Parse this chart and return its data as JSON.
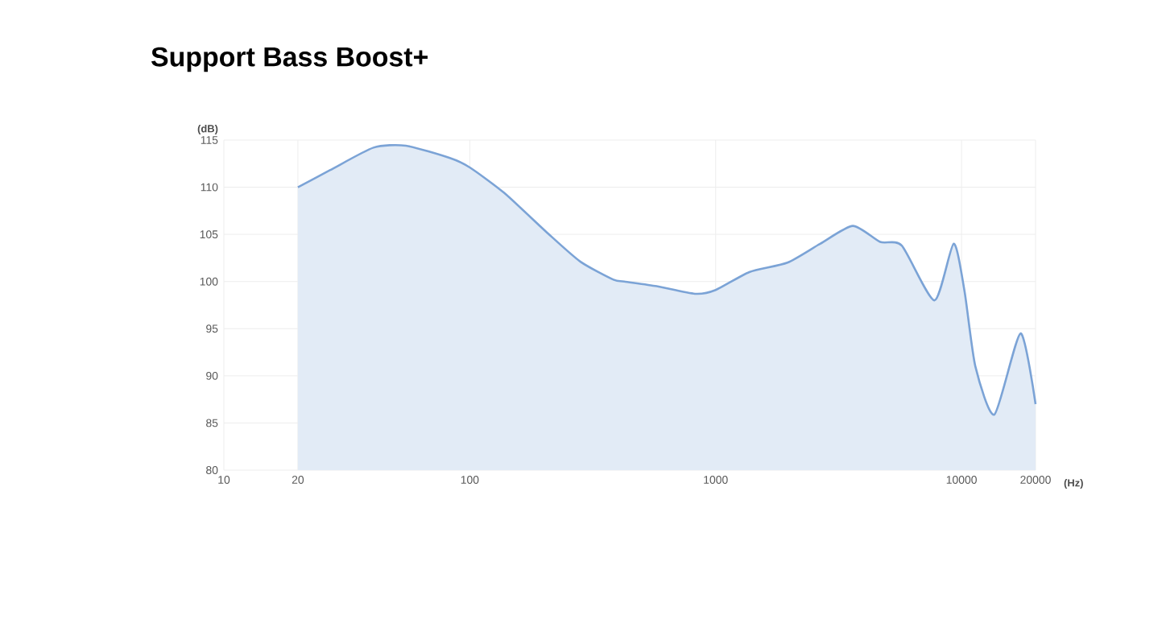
{
  "chart_data": {
    "type": "area",
    "title": "Support Bass Boost+",
    "xlabel": "(Hz)",
    "ylabel": "(dB)",
    "log": "x",
    "grid": true,
    "color": "#7ba3d6",
    "x": [
      20,
      27,
      40.6,
      55,
      83,
      100,
      138,
      208,
      282,
      384,
      425,
      576,
      824,
      1000,
      1371,
      1958,
      2660,
      3614,
      4667,
      5716,
      7763,
      9290,
      10280,
      11380,
      13610,
      17380,
      20000
    ],
    "values": [
      110,
      111.8,
      114.2,
      114.4,
      113.1,
      112.1,
      109.4,
      105.1,
      102.1,
      100.2,
      100,
      99.5,
      98.7,
      99.1,
      101,
      102,
      104,
      105.9,
      104.2,
      103.8,
      98,
      104,
      99,
      91,
      85.9,
      94.5,
      87
    ],
    "xlim": [
      10,
      20000
    ],
    "ylim": [
      80,
      115
    ],
    "xticks": [
      10,
      20,
      100,
      1000,
      10000,
      20000
    ],
    "yticks": [
      80,
      85,
      90,
      95,
      100,
      105,
      110,
      115
    ]
  }
}
